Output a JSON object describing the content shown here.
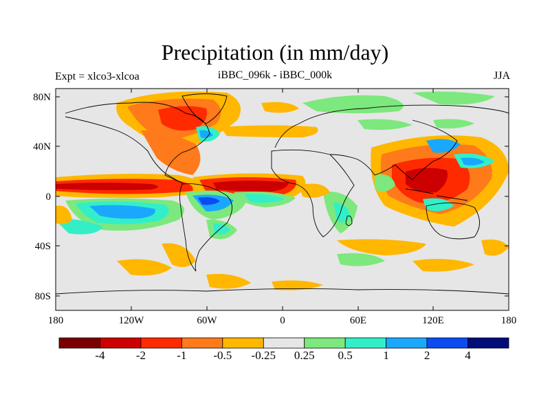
{
  "title": "Precipitation (in mm/day)",
  "left_subtitle": "Expt = xlco3-xlcoa",
  "center_subtitle": "iBBC_096k - iBBC_000k",
  "right_subtitle": "JJA",
  "lat_labels": [
    "80N",
    "40N",
    "0",
    "40S",
    "80S"
  ],
  "lon_labels": [
    "180",
    "120W",
    "60W",
    "0",
    "60E",
    "120E",
    "180"
  ],
  "colorbar": {
    "colors": [
      "#7a0000",
      "#cc0000",
      "#ff2a00",
      "#ff7a1a",
      "#ffb700",
      "#e6e6e6",
      "#7de87d",
      "#33efc8",
      "#1aa8ff",
      "#0a4cf0",
      "#000c7a"
    ],
    "labels": [
      "-4",
      "-2",
      "-1",
      "-0.5",
      "-0.25",
      "0.25",
      "0.5",
      "1",
      "2",
      "4"
    ]
  },
  "colors": {
    "background": "#e6e6e6",
    "red_dark": "#cc0000",
    "red": "#ff2a00",
    "orange": "#ff7a1a",
    "yellow": "#ffb700",
    "green": "#7de87d",
    "cyan": "#33efc8",
    "blue": "#1aa8ff",
    "dark_blue": "#0a4cf0"
  }
}
